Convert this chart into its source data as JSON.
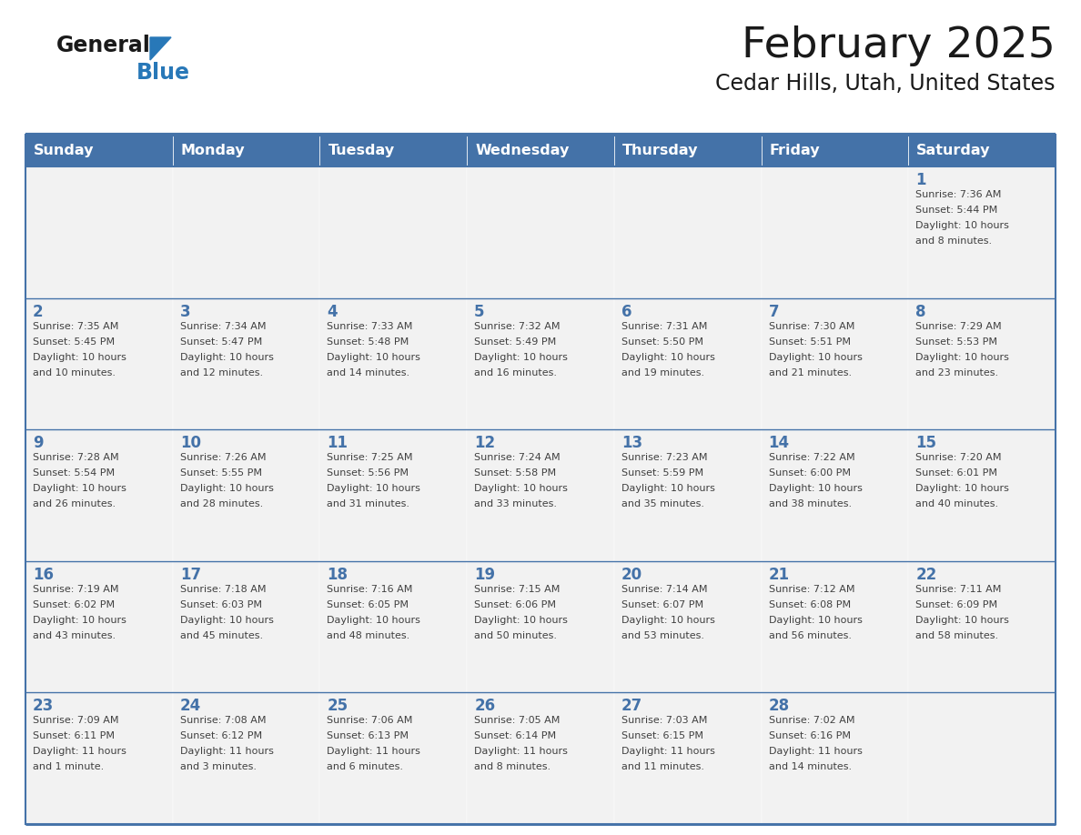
{
  "title": "February 2025",
  "subtitle": "Cedar Hills, Utah, United States",
  "header_bg_color": "#4472A8",
  "header_text_color": "#FFFFFF",
  "cell_bg_color": "#F2F2F2",
  "day_number_color": "#4472A8",
  "info_text_color": "#404040",
  "border_color": "#4472A8",
  "days_of_week": [
    "Sunday",
    "Monday",
    "Tuesday",
    "Wednesday",
    "Thursday",
    "Friday",
    "Saturday"
  ],
  "weeks": [
    [
      {
        "day": null
      },
      {
        "day": null
      },
      {
        "day": null
      },
      {
        "day": null
      },
      {
        "day": null
      },
      {
        "day": null
      },
      {
        "day": 1,
        "sunrise": "7:36 AM",
        "sunset": "5:44 PM",
        "daylight": "10 hours and 8 minutes."
      }
    ],
    [
      {
        "day": 2,
        "sunrise": "7:35 AM",
        "sunset": "5:45 PM",
        "daylight": "10 hours and 10 minutes."
      },
      {
        "day": 3,
        "sunrise": "7:34 AM",
        "sunset": "5:47 PM",
        "daylight": "10 hours and 12 minutes."
      },
      {
        "day": 4,
        "sunrise": "7:33 AM",
        "sunset": "5:48 PM",
        "daylight": "10 hours and 14 minutes."
      },
      {
        "day": 5,
        "sunrise": "7:32 AM",
        "sunset": "5:49 PM",
        "daylight": "10 hours and 16 minutes."
      },
      {
        "day": 6,
        "sunrise": "7:31 AM",
        "sunset": "5:50 PM",
        "daylight": "10 hours and 19 minutes."
      },
      {
        "day": 7,
        "sunrise": "7:30 AM",
        "sunset": "5:51 PM",
        "daylight": "10 hours and 21 minutes."
      },
      {
        "day": 8,
        "sunrise": "7:29 AM",
        "sunset": "5:53 PM",
        "daylight": "10 hours and 23 minutes."
      }
    ],
    [
      {
        "day": 9,
        "sunrise": "7:28 AM",
        "sunset": "5:54 PM",
        "daylight": "10 hours and 26 minutes."
      },
      {
        "day": 10,
        "sunrise": "7:26 AM",
        "sunset": "5:55 PM",
        "daylight": "10 hours and 28 minutes."
      },
      {
        "day": 11,
        "sunrise": "7:25 AM",
        "sunset": "5:56 PM",
        "daylight": "10 hours and 31 minutes."
      },
      {
        "day": 12,
        "sunrise": "7:24 AM",
        "sunset": "5:58 PM",
        "daylight": "10 hours and 33 minutes."
      },
      {
        "day": 13,
        "sunrise": "7:23 AM",
        "sunset": "5:59 PM",
        "daylight": "10 hours and 35 minutes."
      },
      {
        "day": 14,
        "sunrise": "7:22 AM",
        "sunset": "6:00 PM",
        "daylight": "10 hours and 38 minutes."
      },
      {
        "day": 15,
        "sunrise": "7:20 AM",
        "sunset": "6:01 PM",
        "daylight": "10 hours and 40 minutes."
      }
    ],
    [
      {
        "day": 16,
        "sunrise": "7:19 AM",
        "sunset": "6:02 PM",
        "daylight": "10 hours and 43 minutes."
      },
      {
        "day": 17,
        "sunrise": "7:18 AM",
        "sunset": "6:03 PM",
        "daylight": "10 hours and 45 minutes."
      },
      {
        "day": 18,
        "sunrise": "7:16 AM",
        "sunset": "6:05 PM",
        "daylight": "10 hours and 48 minutes."
      },
      {
        "day": 19,
        "sunrise": "7:15 AM",
        "sunset": "6:06 PM",
        "daylight": "10 hours and 50 minutes."
      },
      {
        "day": 20,
        "sunrise": "7:14 AM",
        "sunset": "6:07 PM",
        "daylight": "10 hours and 53 minutes."
      },
      {
        "day": 21,
        "sunrise": "7:12 AM",
        "sunset": "6:08 PM",
        "daylight": "10 hours and 56 minutes."
      },
      {
        "day": 22,
        "sunrise": "7:11 AM",
        "sunset": "6:09 PM",
        "daylight": "10 hours and 58 minutes."
      }
    ],
    [
      {
        "day": 23,
        "sunrise": "7:09 AM",
        "sunset": "6:11 PM",
        "daylight": "11 hours and 1 minute."
      },
      {
        "day": 24,
        "sunrise": "7:08 AM",
        "sunset": "6:12 PM",
        "daylight": "11 hours and 3 minutes."
      },
      {
        "day": 25,
        "sunrise": "7:06 AM",
        "sunset": "6:13 PM",
        "daylight": "11 hours and 6 minutes."
      },
      {
        "day": 26,
        "sunrise": "7:05 AM",
        "sunset": "6:14 PM",
        "daylight": "11 hours and 8 minutes."
      },
      {
        "day": 27,
        "sunrise": "7:03 AM",
        "sunset": "6:15 PM",
        "daylight": "11 hours and 11 minutes."
      },
      {
        "day": 28,
        "sunrise": "7:02 AM",
        "sunset": "6:16 PM",
        "daylight": "11 hours and 14 minutes."
      },
      {
        "day": null
      }
    ]
  ]
}
